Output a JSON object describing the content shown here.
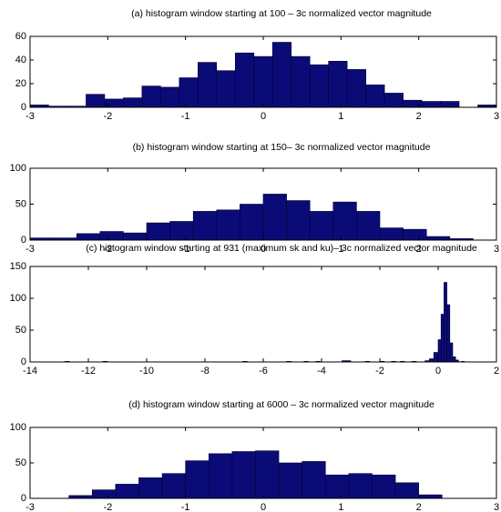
{
  "chart_data": [
    {
      "type": "histogram",
      "title": "(a) histogram window starting at 100 – 3c normalized vector magnitude",
      "bins": [
        -3,
        -2.76,
        -2.52,
        -2.28,
        -2.04,
        -1.8,
        -1.56,
        -1.32,
        -1.08,
        -0.84,
        -0.6,
        -0.36,
        -0.12,
        0.12,
        0.36,
        0.6,
        0.84,
        1.08,
        1.32,
        1.56,
        1.8,
        2.04,
        2.28,
        2.52,
        2.76,
        3
      ],
      "counts": [
        2,
        1,
        1,
        11,
        7,
        8,
        18,
        17,
        25,
        38,
        31,
        46,
        43,
        55,
        43,
        36,
        39,
        32,
        19,
        12,
        6,
        5,
        5,
        0,
        2
      ],
      "xlim": [
        -3,
        3
      ],
      "xticks": [
        -3,
        -2,
        -1,
        0,
        1,
        2,
        3
      ],
      "ylim": [
        0,
        60
      ],
      "yticks": [
        0,
        20,
        40,
        60
      ],
      "color": "#0b0b78"
    },
    {
      "type": "histogram",
      "title": "(b) histogram window starting at 150– 3c normalized vector magnitude",
      "bins": [
        -3,
        -2.7,
        -2.4,
        -2.1,
        -1.8,
        -1.5,
        -1.2,
        -0.9,
        -0.6,
        -0.3,
        0,
        0.3,
        0.6,
        0.9,
        1.2,
        1.5,
        1.8,
        2.1,
        2.4,
        2.7
      ],
      "counts": [
        3,
        3,
        9,
        12,
        10,
        24,
        26,
        40,
        42,
        50,
        64,
        55,
        40,
        53,
        40,
        17,
        15,
        5,
        2
      ],
      "xlim": [
        -3,
        3
      ],
      "xticks": [
        -3,
        -2,
        -1,
        0,
        1,
        2,
        3
      ],
      "ylim": [
        0,
        100
      ],
      "yticks": [
        0,
        50,
        100
      ],
      "color": "#0b0b78"
    },
    {
      "type": "histogram",
      "title": "(c) histogram window starting at 931 (maximum sk and ku)– 3c normalized vector magnitude",
      "bins": [
        -14,
        -12.8,
        -12.65,
        -11.5,
        -11.35,
        -6.7,
        -6.55,
        -5.2,
        -5.05,
        -4.6,
        -4.45,
        -4.2,
        -4.05,
        -3.3,
        -3.15,
        -3.0,
        -2.5,
        -2.35,
        -2.0,
        -1.85,
        -1.6,
        -1.45,
        -1.3,
        -1.15,
        -0.9,
        -0.75,
        -0.45,
        -0.3,
        -0.15,
        0,
        0.1,
        0.2,
        0.3,
        0.4,
        0.5,
        0.6,
        0.7,
        0.8,
        0.9,
        2
      ],
      "counts": [
        0,
        1,
        0,
        1,
        0,
        1,
        0,
        1,
        0,
        1,
        0,
        1,
        0,
        2,
        2,
        0,
        1,
        0,
        1,
        0,
        1,
        0,
        1,
        0,
        1,
        0,
        2,
        5,
        15,
        35,
        75,
        125,
        90,
        30,
        8,
        3,
        0,
        1,
        0
      ],
      "xlim": [
        -14,
        2
      ],
      "xticks": [
        -14,
        -12,
        -10,
        -8,
        -6,
        -4,
        -2,
        0,
        2
      ],
      "ylim": [
        0,
        150
      ],
      "yticks": [
        0,
        50,
        100,
        150
      ],
      "color": "#0b0b78"
    },
    {
      "type": "histogram",
      "title": "(d) histogram window starting at 6000 – 3c normalized vector magnitude",
      "bins": [
        -2.5,
        -2.2,
        -1.9,
        -1.6,
        -1.3,
        -1.0,
        -0.7,
        -0.4,
        -0.1,
        0.2,
        0.5,
        0.8,
        1.1,
        1.4,
        1.7,
        2.0,
        2.3
      ],
      "counts": [
        4,
        12,
        20,
        29,
        35,
        53,
        63,
        66,
        67,
        50,
        52,
        33,
        35,
        33,
        22,
        5
      ],
      "xlim": [
        -3,
        3
      ],
      "xticks": [
        -3,
        -2,
        -1,
        0,
        1,
        2,
        3
      ],
      "ylim": [
        0,
        100
      ],
      "yticks": [
        0,
        50,
        100
      ],
      "color": "#0b0b78"
    }
  ]
}
